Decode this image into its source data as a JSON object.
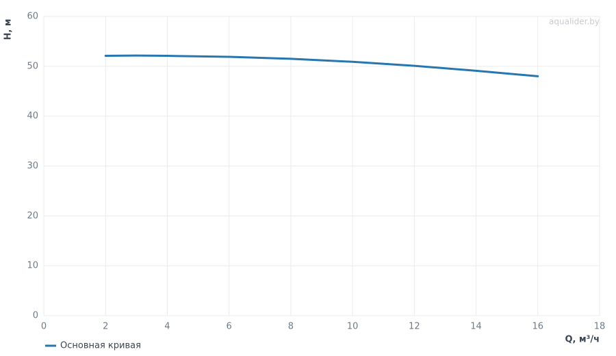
{
  "chart_data": {
    "type": "line",
    "watermark": "aqualider.by",
    "x_label": "Q, м³/ч",
    "y_label": "H, м",
    "xlim": [
      0,
      18
    ],
    "xticks": [
      0,
      2,
      4,
      6,
      8,
      10,
      12,
      14,
      16,
      18
    ],
    "ylim": [
      0,
      60
    ],
    "yticks": [
      0,
      10,
      20,
      30,
      40,
      50,
      60
    ],
    "grid": true,
    "x": [
      2,
      3,
      4,
      6,
      8,
      10,
      12,
      14,
      16
    ],
    "series": [
      {
        "name": "Основная кривая",
        "color": "#2676b0",
        "values": [
          52.1,
          52.15,
          52.1,
          51.9,
          51.5,
          50.9,
          50.1,
          49.1,
          48.0
        ]
      }
    ]
  }
}
